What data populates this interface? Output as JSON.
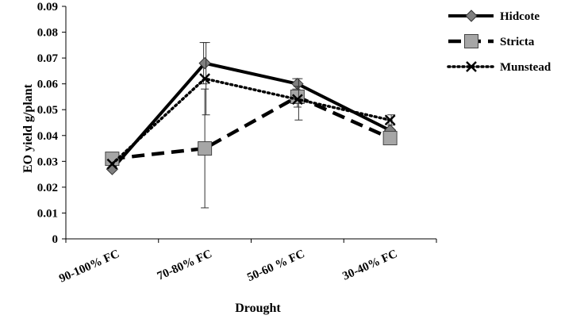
{
  "chart_data": {
    "type": "line",
    "title": "",
    "xlabel": "Drought",
    "ylabel": "EO yield g/plant",
    "categories": [
      "90-100% FC",
      "70-80% FC",
      "50-60 % FC",
      "30-40% FC"
    ],
    "ylim": [
      0,
      0.09
    ],
    "yticks": [
      "0",
      "0.01",
      "0.02",
      "0.03",
      "0.04",
      "0.05",
      "0.06",
      "0.07",
      "0.08",
      "0.09"
    ],
    "grid": false,
    "legend_position": "top-right",
    "series": [
      {
        "name": "Hidcote",
        "values": [
          0.027,
          0.068,
          0.06,
          0.042
        ],
        "errors": [
          0.0,
          0.008,
          0.002,
          0.004
        ],
        "line_style": "solid",
        "marker": "diamond",
        "color": "#000000",
        "marker_fill": "#7f7f7f"
      },
      {
        "name": "Stricta",
        "values": [
          0.031,
          0.035,
          0.055,
          0.039
        ],
        "errors": [
          0.0,
          0.023,
          0.004,
          0.002
        ],
        "line_style": "dashed",
        "marker": "square",
        "color": "#000000",
        "marker_fill": "#a6a6a6"
      },
      {
        "name": "Munstead",
        "values": [
          0.029,
          0.062,
          0.054,
          0.046
        ],
        "errors": [
          0.0,
          0.014,
          0.008,
          0.002
        ],
        "line_style": "dotted",
        "marker": "x",
        "color": "#000000",
        "marker_fill": "#000000"
      }
    ]
  }
}
